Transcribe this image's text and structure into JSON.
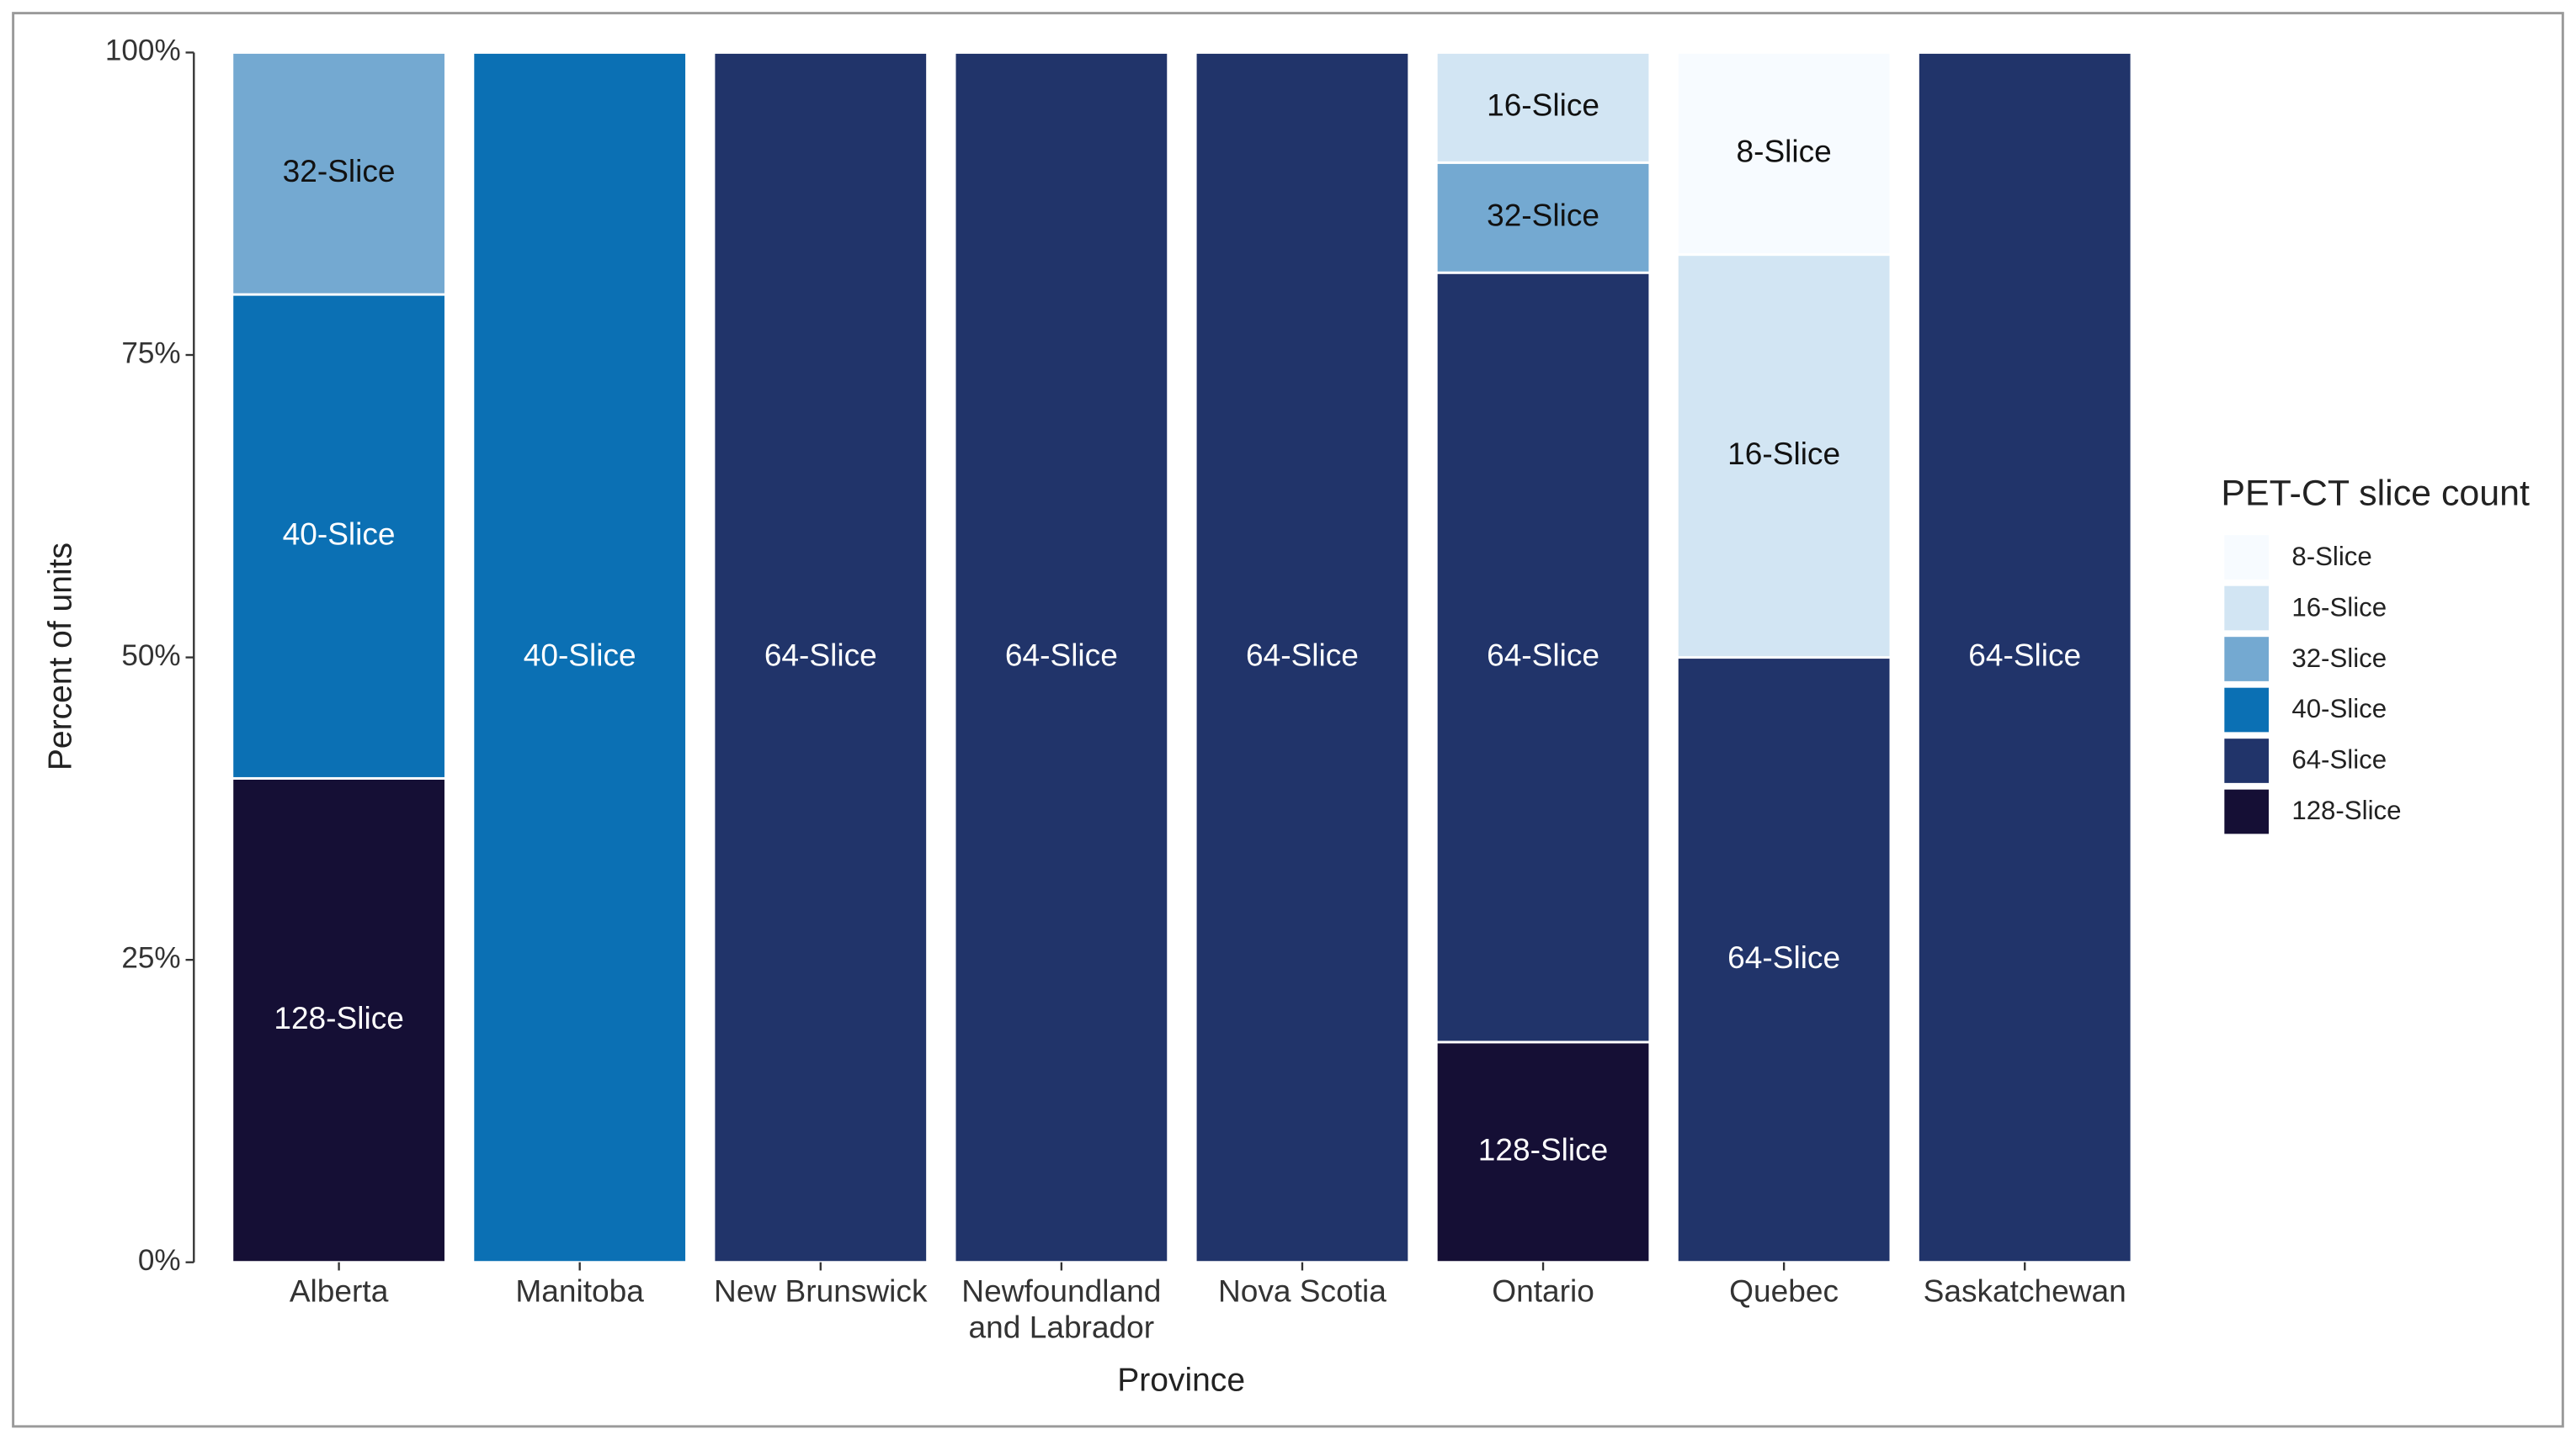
{
  "chart_data": {
    "type": "stacked_bar",
    "x_label": "Province",
    "y_label": "Percent of units",
    "legend_title": "PET-CT slice count",
    "legend_position": "right",
    "categories": [
      "Alberta",
      "Manitoba",
      "New Brunswick",
      "Newfoundland and Labrador",
      "Nova Scotia",
      "Ontario",
      "Quebec",
      "Saskatchewan"
    ],
    "series": [
      {
        "name": "8-Slice",
        "color": "#f7fbff",
        "values": [
          null,
          null,
          null,
          null,
          null,
          null,
          16.7,
          null
        ]
      },
      {
        "name": "16-Slice",
        "color": "#d2e5f3",
        "values": [
          null,
          null,
          null,
          null,
          null,
          9.1,
          33.3,
          null
        ]
      },
      {
        "name": "32-Slice",
        "color": "#74a9d1",
        "values": [
          20,
          null,
          null,
          null,
          null,
          9.1,
          null,
          null
        ]
      },
      {
        "name": "40-Slice",
        "color": "#0b70b4",
        "values": [
          40,
          100,
          null,
          null,
          null,
          null,
          null,
          null
        ]
      },
      {
        "name": "64-Slice",
        "color": "#21346a",
        "values": [
          null,
          null,
          100,
          100,
          100,
          63.6,
          50,
          100
        ]
      },
      {
        "name": "128-Slice",
        "color": "#150f35",
        "values": [
          40,
          null,
          null,
          null,
          null,
          18.2,
          null,
          null
        ]
      }
    ],
    "ylim": [
      0,
      100
    ],
    "yticks": [
      {
        "value": 0,
        "label": "0%"
      },
      {
        "value": 25,
        "label": "25%"
      },
      {
        "value": 50,
        "label": "50%"
      },
      {
        "value": 75,
        "label": "75%"
      },
      {
        "value": 100,
        "label": "100%"
      }
    ]
  }
}
